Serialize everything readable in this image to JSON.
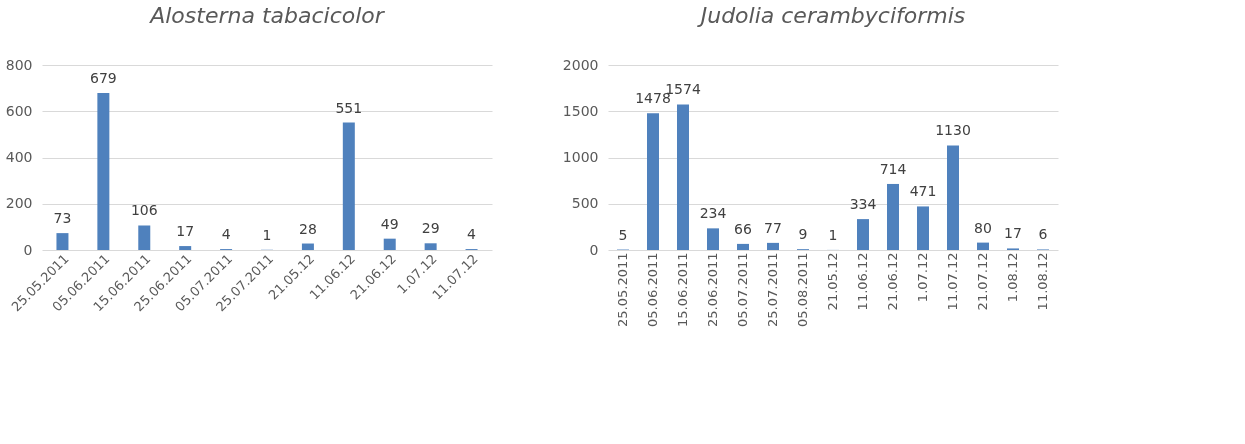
{
  "chart_data": [
    {
      "type": "bar",
      "title": "Alosterna tabacicolor",
      "categories": [
        "25.05.2011",
        "05.06.2011",
        "15.06.2011",
        "25.06.2011",
        "05.07.2011",
        "25.07.2011",
        "21.05.12",
        "11.06.12",
        "21.06.12",
        "1.07.12",
        "11.07.12"
      ],
      "series": [
        {
          "color": "#4f81bd",
          "values": [
            73,
            679,
            106,
            17,
            4,
            1,
            28,
            551,
            49,
            29,
            4
          ]
        }
      ],
      "ylim": [
        0,
        800
      ],
      "yticks": [
        0,
        200,
        400,
        600,
        800
      ],
      "grid": "y",
      "data_labels": true
    },
    {
      "type": "bar",
      "title": "Judolia cerambyciformis",
      "categories": [
        "25.05.2011",
        "05.06.2011",
        "15.06.2011",
        "25.06.2011",
        "05.07.2011",
        "25.07.2011",
        "05.08.2011",
        "21.05.12",
        "11.06.12",
        "21.06.12",
        "1.07.12",
        "11.07.12",
        "21.07.12",
        "1.08.12",
        "11.08.12"
      ],
      "series": [
        {
          "color": "#4f81bd",
          "values": [
            5,
            1478,
            1574,
            234,
            66,
            77,
            9,
            1,
            334,
            714,
            471,
            1130,
            80,
            17,
            6
          ]
        }
      ],
      "ylim": [
        0,
        2000
      ],
      "yticks": [
        0,
        500,
        1000,
        1500,
        2000
      ],
      "grid": "y",
      "data_labels": true
    }
  ]
}
